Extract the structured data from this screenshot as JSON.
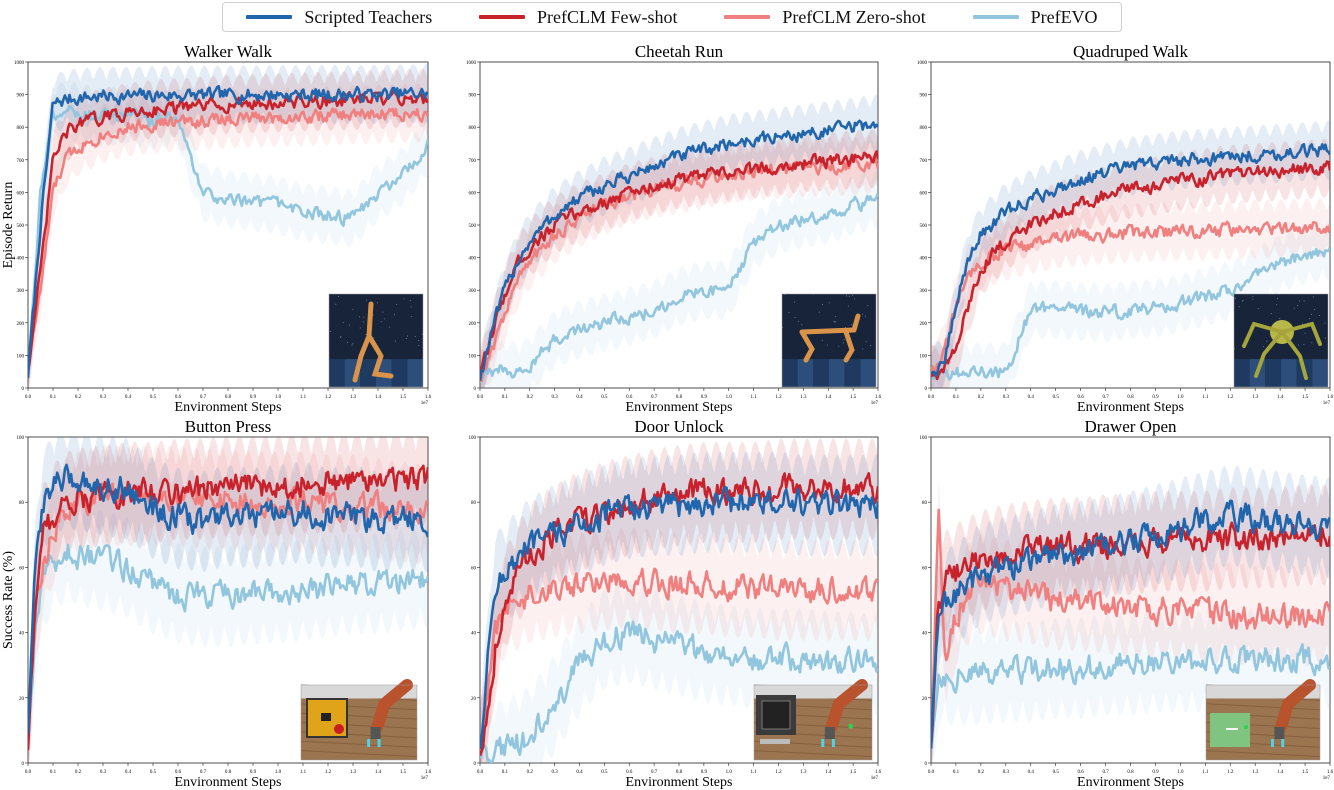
{
  "legend": {
    "items": [
      {
        "label": "Scripted Teachers",
        "color": "#2166ac"
      },
      {
        "label": "PrefCLM Few-shot",
        "color": "#c8232c"
      },
      {
        "label": "PrefCLM Zero-shot",
        "color": "#f08080"
      },
      {
        "label": "PrefEVO",
        "color": "#92c5de"
      }
    ]
  },
  "chart_data": [
    {
      "type": "line",
      "title": "Walker Walk",
      "xlabel": "Environment Steps",
      "ylabel": "Episode Return",
      "x_exponent_label": "1e7",
      "xlim": [
        0,
        1.6
      ],
      "ylim": [
        0,
        1000
      ],
      "xticks": [
        "0.0",
        "0.1",
        "0.2",
        "0.3",
        "0.4",
        "0.5",
        "0.6",
        "0.7",
        "0.8",
        "0.9",
        "1.0",
        "1.1",
        "1.2",
        "1.3",
        "1.4",
        "1.5",
        "1.6"
      ],
      "yticks": [
        "0",
        "100",
        "200",
        "300",
        "400",
        "500",
        "600",
        "700",
        "800",
        "900",
        "1000"
      ],
      "x": [
        0,
        0.05,
        0.1,
        0.15,
        0.2,
        0.3,
        0.4,
        0.5,
        0.6,
        0.65,
        0.7,
        0.8,
        0.9,
        1.0,
        1.1,
        1.2,
        1.3,
        1.4,
        1.5,
        1.6
      ],
      "series": [
        {
          "name": "Scripted Teachers",
          "values": [
            40,
            500,
            870,
            885,
            890,
            895,
            895,
            897,
            898,
            898,
            898,
            899,
            899,
            900,
            900,
            900,
            900,
            900,
            902,
            903
          ]
        },
        {
          "name": "PrefCLM Few-shot",
          "values": [
            60,
            350,
            700,
            780,
            810,
            830,
            845,
            855,
            860,
            860,
            865,
            870,
            872,
            875,
            878,
            880,
            882,
            885,
            888,
            890
          ]
        },
        {
          "name": "PrefCLM Zero-shot",
          "values": [
            70,
            300,
            600,
            700,
            740,
            780,
            800,
            810,
            815,
            818,
            820,
            825,
            828,
            830,
            832,
            835,
            838,
            840,
            842,
            845
          ]
        },
        {
          "name": "PrefEVO",
          "values": [
            50,
            600,
            840,
            850,
            845,
            830,
            840,
            820,
            830,
            700,
            600,
            580,
            570,
            560,
            540,
            530,
            520,
            600,
            650,
            740
          ]
        }
      ]
    },
    {
      "type": "line",
      "title": "Cheetah Run",
      "xlabel": "Environment Steps",
      "ylabel": "",
      "x_exponent_label": "1e7",
      "xlim": [
        0,
        1.6
      ],
      "ylim": [
        0,
        1000
      ],
      "xticks": [
        "0.0",
        "0.1",
        "0.2",
        "0.3",
        "0.4",
        "0.5",
        "0.6",
        "0.7",
        "0.8",
        "0.9",
        "1.0",
        "1.1",
        "1.2",
        "1.3",
        "1.4",
        "1.5",
        "1.6"
      ],
      "yticks": [
        "0",
        "100",
        "200",
        "300",
        "400",
        "500",
        "600",
        "700",
        "800",
        "900",
        "1000"
      ],
      "x": [
        0,
        0.05,
        0.1,
        0.15,
        0.2,
        0.3,
        0.4,
        0.5,
        0.6,
        0.7,
        0.8,
        0.9,
        1.0,
        1.1,
        1.2,
        1.3,
        1.4,
        1.5,
        1.6
      ],
      "series": [
        {
          "name": "Scripted Teachers",
          "values": [
            30,
            180,
            300,
            390,
            450,
            530,
            580,
            620,
            650,
            680,
            710,
            730,
            750,
            760,
            770,
            780,
            790,
            800,
            810
          ]
        },
        {
          "name": "PrefCLM Few-shot",
          "values": [
            30,
            170,
            290,
            380,
            430,
            500,
            540,
            570,
            600,
            620,
            640,
            650,
            660,
            670,
            680,
            690,
            695,
            700,
            705
          ]
        },
        {
          "name": "PrefCLM Zero-shot",
          "values": [
            30,
            120,
            230,
            330,
            390,
            470,
            520,
            560,
            590,
            610,
            625,
            640,
            655,
            665,
            670,
            675,
            680,
            680,
            690
          ]
        },
        {
          "name": "PrefEVO",
          "values": [
            30,
            40,
            60,
            50,
            70,
            150,
            180,
            200,
            220,
            240,
            280,
            300,
            300,
            450,
            500,
            520,
            530,
            560,
            580
          ]
        }
      ]
    },
    {
      "type": "line",
      "title": "Quadruped Walk",
      "xlabel": "Environment Steps",
      "ylabel": "",
      "x_exponent_label": "1e7",
      "xlim": [
        0,
        1.6
      ],
      "ylim": [
        0,
        1000
      ],
      "xticks": [
        "0.0",
        "0.1",
        "0.2",
        "0.3",
        "0.4",
        "0.5",
        "0.6",
        "0.7",
        "0.8",
        "0.9",
        "1.0",
        "1.1",
        "1.2",
        "1.3",
        "1.4",
        "1.5",
        "1.6"
      ],
      "yticks": [
        "0",
        "100",
        "200",
        "300",
        "400",
        "500",
        "600",
        "700",
        "800",
        "900",
        "1000"
      ],
      "x": [
        0,
        0.05,
        0.1,
        0.15,
        0.2,
        0.3,
        0.4,
        0.5,
        0.6,
        0.7,
        0.8,
        0.9,
        1.0,
        1.1,
        1.2,
        1.3,
        1.4,
        1.5,
        1.6
      ],
      "series": [
        {
          "name": "Scripted Teachers",
          "values": [
            50,
            60,
            250,
            400,
            470,
            540,
            580,
            610,
            640,
            660,
            680,
            690,
            700,
            705,
            710,
            715,
            720,
            725,
            730
          ]
        },
        {
          "name": "PrefCLM Few-shot",
          "values": [
            40,
            50,
            120,
            250,
            370,
            450,
            500,
            540,
            570,
            590,
            610,
            620,
            635,
            645,
            655,
            660,
            665,
            670,
            675
          ]
        },
        {
          "name": "PrefCLM Zero-shot",
          "values": [
            50,
            100,
            250,
            350,
            390,
            420,
            440,
            455,
            465,
            470,
            475,
            478,
            480,
            482,
            485,
            487,
            488,
            490,
            492
          ]
        },
        {
          "name": "PrefEVO",
          "values": [
            50,
            50,
            45,
            50,
            50,
            50,
            240,
            240,
            235,
            230,
            240,
            245,
            260,
            280,
            300,
            340,
            380,
            410,
            420
          ]
        }
      ]
    },
    {
      "type": "line",
      "title": "Button Press",
      "xlabel": "Environment Steps",
      "ylabel": "Success Rate (%)",
      "x_exponent_label": "1e7",
      "xlim": [
        0,
        1.6
      ],
      "ylim": [
        0,
        100
      ],
      "xticks": [
        "0.0",
        "0.1",
        "0.2",
        "0.3",
        "0.4",
        "0.5",
        "0.6",
        "0.7",
        "0.8",
        "0.9",
        "1.0",
        "1.1",
        "1.2",
        "1.3",
        "1.4",
        "1.5",
        "1.6"
      ],
      "yticks": [
        "0",
        "20",
        "40",
        "60",
        "80",
        "100"
      ],
      "x": [
        0,
        0.03,
        0.06,
        0.1,
        0.15,
        0.2,
        0.3,
        0.4,
        0.5,
        0.6,
        0.7,
        0.8,
        0.9,
        1.0,
        1.1,
        1.2,
        1.3,
        1.4,
        1.5,
        1.6
      ],
      "series": [
        {
          "name": "Scripted Teachers",
          "values": [
            10,
            60,
            80,
            86,
            87,
            87,
            85,
            84,
            78,
            75,
            74,
            76,
            75,
            76,
            77,
            75,
            76,
            74,
            75,
            74
          ]
        },
        {
          "name": "PrefCLM Few-shot",
          "values": [
            5,
            50,
            70,
            76,
            80,
            81,
            82,
            83,
            83,
            84,
            84,
            85,
            85,
            85,
            86,
            86,
            86,
            87,
            87,
            88
          ]
        },
        {
          "name": "PrefCLM Zero-shot",
          "values": [
            10,
            45,
            60,
            70,
            78,
            80,
            82,
            82,
            82,
            82,
            81,
            81,
            80,
            80,
            80,
            79,
            79,
            78,
            77,
            76
          ]
        },
        {
          "name": "PrefEVO",
          "values": [
            5,
            40,
            55,
            62,
            65,
            64,
            62,
            60,
            55,
            52,
            51,
            51,
            52,
            52,
            53,
            54,
            55,
            55,
            56,
            57
          ]
        }
      ]
    },
    {
      "type": "line",
      "title": "Door Unlock",
      "xlabel": "Environment Steps",
      "ylabel": "",
      "x_exponent_label": "1e7",
      "xlim": [
        0,
        1.6
      ],
      "ylim": [
        0,
        100
      ],
      "xticks": [
        "0.0",
        "0.1",
        "0.2",
        "0.3",
        "0.4",
        "0.5",
        "0.6",
        "0.7",
        "0.8",
        "0.9",
        "1.0",
        "1.1",
        "1.2",
        "1.3",
        "1.4",
        "1.5",
        "1.6"
      ],
      "yticks": [
        "0",
        "20",
        "40",
        "60",
        "80",
        "100"
      ],
      "x": [
        0,
        0.03,
        0.06,
        0.1,
        0.15,
        0.2,
        0.3,
        0.4,
        0.5,
        0.6,
        0.7,
        0.8,
        0.9,
        1.0,
        1.1,
        1.2,
        1.3,
        1.4,
        1.5,
        1.6
      ],
      "series": [
        {
          "name": "Scripted Teachers",
          "values": [
            5,
            30,
            55,
            58,
            62,
            66,
            70,
            73,
            76,
            78,
            79,
            79,
            80,
            80,
            80,
            80,
            79,
            79,
            79,
            79
          ]
        },
        {
          "name": "PrefCLM Few-shot",
          "values": [
            3,
            15,
            35,
            50,
            58,
            64,
            70,
            74,
            77,
            79,
            81,
            82,
            83,
            83,
            83,
            84,
            84,
            84,
            84,
            84
          ]
        },
        {
          "name": "PrefCLM Zero-shot",
          "values": [
            3,
            20,
            40,
            48,
            50,
            52,
            54,
            55,
            56,
            57,
            56,
            55,
            55,
            54,
            54,
            53,
            53,
            53,
            53,
            53
          ]
        },
        {
          "name": "PrefEVO",
          "values": [
            2,
            2,
            3,
            4,
            6,
            8,
            18,
            30,
            38,
            40,
            38,
            36,
            34,
            33,
            32,
            32,
            32,
            31,
            31,
            30
          ]
        }
      ]
    },
    {
      "type": "line",
      "title": "Drawer Open",
      "xlabel": "Environment Steps",
      "ylabel": "",
      "x_exponent_label": "1e7",
      "xlim": [
        0,
        1.6
      ],
      "ylim": [
        0,
        100
      ],
      "xticks": [
        "0.0",
        "0.1",
        "0.2",
        "0.3",
        "0.4",
        "0.5",
        "0.6",
        "0.7",
        "0.8",
        "0.9",
        "1.0",
        "1.1",
        "1.2",
        "1.3",
        "1.4",
        "1.5",
        "1.6"
      ],
      "yticks": [
        "0",
        "20",
        "40",
        "60",
        "80",
        "100"
      ],
      "x": [
        0,
        0.03,
        0.06,
        0.1,
        0.15,
        0.2,
        0.3,
        0.4,
        0.5,
        0.6,
        0.7,
        0.8,
        0.9,
        1.0,
        1.1,
        1.2,
        1.3,
        1.4,
        1.5,
        1.6
      ],
      "series": [
        {
          "name": "Scripted Teachers",
          "values": [
            5,
            45,
            50,
            52,
            55,
            58,
            60,
            62,
            64,
            65,
            66,
            68,
            70,
            72,
            74,
            76,
            75,
            74,
            73,
            72
          ]
        },
        {
          "name": "PrefCLM Few-shot",
          "values": [
            5,
            50,
            56,
            58,
            60,
            62,
            64,
            65,
            66,
            66,
            67,
            67,
            68,
            68,
            68,
            69,
            69,
            69,
            70,
            70
          ]
        },
        {
          "name": "PrefCLM Zero-shot",
          "values": [
            5,
            75,
            30,
            45,
            52,
            55,
            53,
            52,
            50,
            50,
            49,
            48,
            47,
            47,
            46,
            46,
            45,
            45,
            45,
            45
          ]
        },
        {
          "name": "PrefEVO",
          "values": [
            5,
            27,
            27,
            27,
            27,
            27,
            28,
            28,
            29,
            29,
            30,
            30,
            31,
            31,
            31,
            32,
            32,
            32,
            32,
            32
          ]
        }
      ]
    }
  ]
}
